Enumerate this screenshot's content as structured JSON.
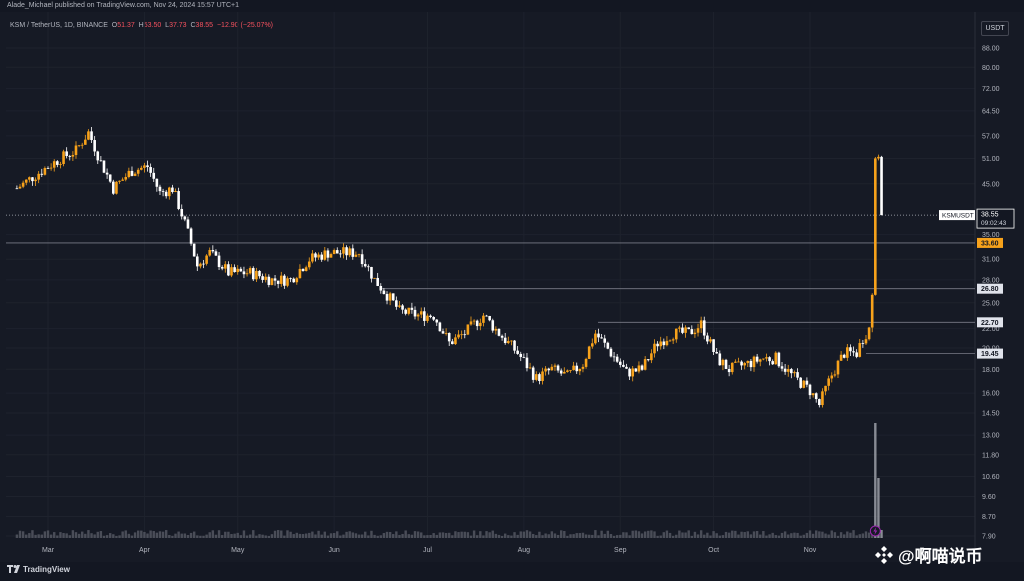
{
  "header": {
    "published_line": "Alade_Michael published on TradingView.com, Nov 24, 2024 15:57 UTC+1",
    "symbol": "KSM / TetherUS, 1D, BINANCE",
    "o_label": "O",
    "o_value": "51.37",
    "h_label": "H",
    "h_value": "53.50",
    "l_label": "L",
    "l_value": "37.73",
    "c_label": "C",
    "c_value": "38.55",
    "change": "−12.90 (−25.07%)",
    "currency": "USDT"
  },
  "footer": {
    "brand": "TradingView",
    "watermark": "@啊喵说币"
  },
  "colors": {
    "up": "#f7a21b",
    "down": "#ffffff",
    "background": "#161a25",
    "axis_text": "#b2b5be",
    "level_line": "#787b86"
  },
  "chart_data": {
    "type": "candlestick",
    "scale": "log",
    "ylim": [
      7.9,
      100
    ],
    "y_ticks": [
      "88.00",
      "80.00",
      "72.00",
      "64.50",
      "57.00",
      "51.00",
      "45.00",
      "35.00",
      "31.00",
      "28.00",
      "25.00",
      "22.00",
      "20.00",
      "18.00",
      "16.00",
      "14.50",
      "13.00",
      "11.80",
      "10.60",
      "9.60",
      "8.70",
      "7.90"
    ],
    "x_ticks": [
      "Mar",
      "Apr",
      "May",
      "Jun",
      "Jul",
      "Aug",
      "Sep",
      "Oct",
      "Nov"
    ],
    "last_price": {
      "symbol": "KSMUSDT",
      "value": "38.55",
      "countdown": "09:02:43"
    },
    "levels": [
      {
        "label": "33.60",
        "value": 33.6,
        "style": "solid",
        "highlight": true
      },
      {
        "label": "26.80",
        "value": 26.8,
        "style": "solid"
      },
      {
        "label": "22.70",
        "value": 22.7,
        "style": "solid"
      },
      {
        "label": "19.45",
        "value": 19.45,
        "style": "solid"
      }
    ],
    "close_path": [
      [
        "Feb 20",
        44
      ],
      [
        "Feb 26",
        47
      ],
      [
        "Mar 5",
        51
      ],
      [
        "Mar 10",
        53
      ],
      [
        "Mar 14",
        58
      ],
      [
        "Mar 18",
        50
      ],
      [
        "Mar 22",
        44
      ],
      [
        "Mar 28",
        48
      ],
      [
        "Apr 2",
        49
      ],
      [
        "Apr 6",
        43
      ],
      [
        "Apr 10",
        44
      ],
      [
        "Apr 14",
        37
      ],
      [
        "Apr 18",
        30
      ],
      [
        "Apr 22",
        32
      ],
      [
        "Apr 28",
        29
      ],
      [
        "May 5",
        29
      ],
      [
        "May 12",
        28
      ],
      [
        "May 18",
        28
      ],
      [
        "May 24",
        31
      ],
      [
        "May 30",
        32
      ],
      [
        "Jun 5",
        32
      ],
      [
        "Jun 9",
        32
      ],
      [
        "Jun 14",
        28
      ],
      [
        "Jun 18",
        26
      ],
      [
        "Jun 22",
        24
      ],
      [
        "Jun 28",
        23.5
      ],
      [
        "Jul 3",
        23.5
      ],
      [
        "Jul 8",
        20.5
      ],
      [
        "Jul 13",
        21.5
      ],
      [
        "Jul 19",
        23.5
      ],
      [
        "Jul 24",
        21.5
      ],
      [
        "Jul 30",
        19.5
      ],
      [
        "Aug 5",
        17.2
      ],
      [
        "Aug 10",
        18
      ],
      [
        "Aug 15",
        17.4
      ],
      [
        "Aug 20",
        18.5
      ],
      [
        "Aug 24",
        21.5
      ],
      [
        "Aug 29",
        19.5
      ],
      [
        "Sep 3",
        17.7
      ],
      [
        "Sep 8",
        18
      ],
      [
        "Sep 13",
        20.5
      ],
      [
        "Sep 18",
        21.5
      ],
      [
        "Sep 23",
        21.5
      ],
      [
        "Sep 27",
        22.5
      ],
      [
        "Oct 2",
        19
      ],
      [
        "Oct 6",
        18
      ],
      [
        "Oct 12",
        18.5
      ],
      [
        "Oct 17",
        19
      ],
      [
        "Oct 21",
        19
      ],
      [
        "Oct 26",
        17.5
      ],
      [
        "Nov 1",
        16.2
      ],
      [
        "Nov 4",
        15.1
      ],
      [
        "Nov 8",
        17.5
      ],
      [
        "Nov 12",
        19.5
      ],
      [
        "Nov 16",
        19.5
      ],
      [
        "Nov 18",
        21
      ],
      [
        "Nov 20",
        22
      ],
      [
        "Nov 21",
        26
      ],
      [
        "Nov 22",
        51
      ],
      [
        "Nov 23",
        51.4
      ],
      [
        "Nov 24",
        38.55
      ]
    ]
  }
}
